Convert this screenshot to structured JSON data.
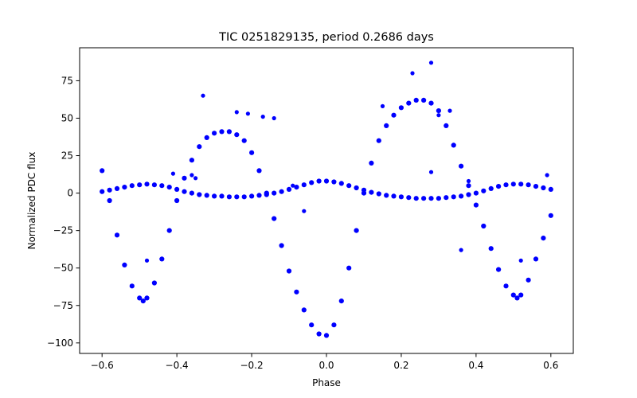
{
  "chart_data": {
    "type": "scatter",
    "title": "TIC 0251829135, period 0.2686 days",
    "xlabel": "Phase",
    "ylabel": "Normalized PDC flux",
    "xlim": [
      -0.66,
      0.66
    ],
    "ylim": [
      -107,
      97
    ],
    "xticks": [
      -0.6,
      -0.4,
      -0.2,
      0.0,
      0.2,
      0.4,
      0.6
    ],
    "xtick_labels": [
      "−0.6",
      "−0.4",
      "−0.2",
      "0.0",
      "0.2",
      "0.4",
      "0.6"
    ],
    "yticks": [
      75,
      50,
      25,
      0,
      -25,
      -50,
      -75,
      -100
    ],
    "ytick_labels": [
      "75",
      "50",
      "25",
      "0",
      "−25",
      "−50",
      "−75",
      "−100"
    ],
    "grid": false,
    "marker_color": "#0000ff",
    "series": [
      {
        "description": "main light-curve envelope",
        "x": [
          -0.6,
          -0.58,
          -0.56,
          -0.54,
          -0.52,
          -0.5,
          -0.49,
          -0.48,
          -0.46,
          -0.44,
          -0.42,
          -0.4,
          -0.38,
          -0.36,
          -0.34,
          -0.32,
          -0.3,
          -0.28,
          -0.26,
          -0.24,
          -0.22,
          -0.2,
          -0.18,
          -0.16,
          -0.14,
          -0.12,
          -0.1,
          -0.08,
          -0.06,
          -0.04,
          -0.02,
          0.0,
          0.02,
          0.04,
          0.06,
          0.08,
          0.1,
          0.12,
          0.14,
          0.16,
          0.18,
          0.2,
          0.22,
          0.24,
          0.26,
          0.28,
          0.3,
          0.32,
          0.34,
          0.36,
          0.38,
          0.4,
          0.42,
          0.44,
          0.46,
          0.48,
          0.5,
          0.51,
          0.52,
          0.54,
          0.56,
          0.58,
          0.6
        ],
        "y": [
          15,
          -5,
          -28,
          -48,
          -62,
          -70,
          -72,
          -70,
          -60,
          -44,
          -25,
          -5,
          10,
          22,
          31,
          37,
          40,
          41,
          41,
          39,
          35,
          27,
          15,
          0,
          -17,
          -35,
          -52,
          -66,
          -78,
          -88,
          -94,
          -95,
          -88,
          -72,
          -50,
          -25,
          0,
          20,
          35,
          45,
          52,
          57,
          60,
          62,
          62,
          60,
          55,
          45,
          32,
          18,
          5,
          -8,
          -22,
          -37,
          -51,
          -62,
          -68,
          -70,
          -68,
          -58,
          -44,
          -30,
          -15
        ]
      },
      {
        "description": "secondary low-amplitude sinusoid",
        "x": [
          -0.6,
          -0.58,
          -0.56,
          -0.54,
          -0.52,
          -0.5,
          -0.48,
          -0.46,
          -0.44,
          -0.42,
          -0.4,
          -0.38,
          -0.36,
          -0.34,
          -0.32,
          -0.3,
          -0.28,
          -0.26,
          -0.24,
          -0.22,
          -0.2,
          -0.18,
          -0.16,
          -0.14,
          -0.12,
          -0.1,
          -0.08,
          -0.06,
          -0.04,
          -0.02,
          0.0,
          0.02,
          0.04,
          0.06,
          0.08,
          0.1,
          0.12,
          0.14,
          0.16,
          0.18,
          0.2,
          0.22,
          0.24,
          0.26,
          0.28,
          0.3,
          0.32,
          0.34,
          0.36,
          0.38,
          0.4,
          0.42,
          0.44,
          0.46,
          0.48,
          0.5,
          0.52,
          0.54,
          0.56,
          0.58,
          0.6
        ],
        "y": [
          1,
          2,
          3,
          4,
          5,
          5.5,
          6,
          5.5,
          5,
          4,
          2.5,
          1,
          0,
          -1,
          -1.5,
          -2,
          -2,
          -2.5,
          -2.5,
          -2.5,
          -2,
          -1.5,
          -1,
          0,
          1,
          2.5,
          4,
          5.5,
          7,
          8,
          8,
          7.5,
          6.5,
          5,
          3.5,
          2,
          0.5,
          -0.5,
          -1.5,
          -2,
          -2.5,
          -3,
          -3.5,
          -3.5,
          -3.5,
          -3.5,
          -3,
          -2.5,
          -2,
          -1,
          0,
          1.5,
          3,
          4.5,
          5.5,
          6,
          6,
          5.5,
          4.5,
          3.5,
          2.5
        ]
      },
      {
        "description": "outliers",
        "x": [
          -0.33,
          -0.24,
          -0.21,
          -0.17,
          -0.36,
          -0.35,
          -0.48,
          -0.41,
          -0.14,
          0.15,
          0.23,
          0.28,
          0.28,
          0.3,
          0.33,
          0.38,
          0.36,
          0.52,
          0.59,
          -0.06,
          -0.09
        ],
        "y": [
          65,
          54,
          53,
          51,
          12,
          10,
          -45,
          13,
          50,
          58,
          80,
          87,
          14,
          52,
          55,
          8,
          -38,
          -45,
          12,
          -12,
          5
        ]
      }
    ]
  }
}
